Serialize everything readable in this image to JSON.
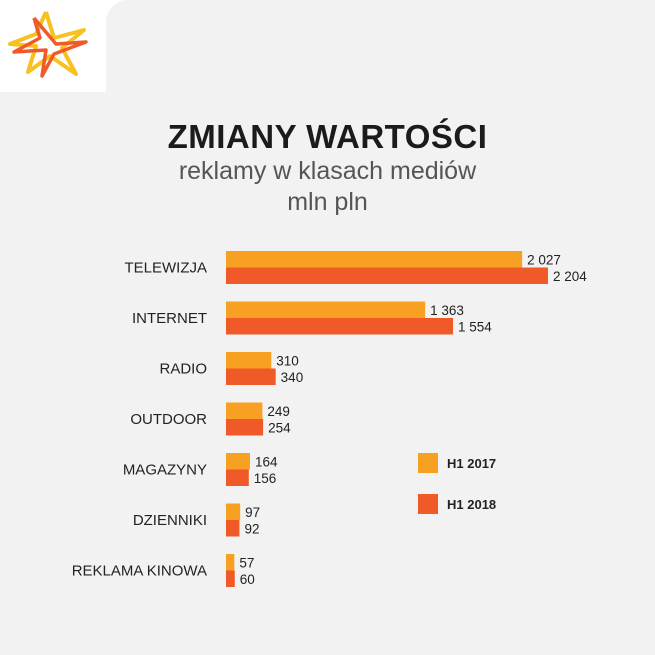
{
  "header": {
    "title": "ZMIANY WARTOŚCI",
    "subtitle_line1": "reklamy w klasach mediów",
    "subtitle_line2": "mln pln"
  },
  "colors": {
    "h1_2017": "#f7a021",
    "h1_2018": "#f05a28",
    "panel": "#f2f2f2"
  },
  "chart_data": {
    "type": "bar",
    "orientation": "horizontal",
    "title": "ZMIANY WARTOŚCI",
    "subtitle": "reklamy w klasach mediów mln pln",
    "categories": [
      "TELEWIZJA",
      "INTERNET",
      "RADIO",
      "OUTDOOR",
      "MAGAZYNY",
      "DZIENNIKI",
      "REKLAMA KINOWA"
    ],
    "series": [
      {
        "name": "H1 2017",
        "values": [
          2027,
          1363,
          310,
          249,
          164,
          97,
          57
        ],
        "labels": [
          "2 027",
          "1 363",
          "310",
          "249",
          "164",
          "97",
          "57"
        ]
      },
      {
        "name": "H1 2018",
        "values": [
          2204,
          1554,
          340,
          254,
          156,
          92,
          60
        ],
        "labels": [
          "2 204",
          "1 554",
          "340",
          "254",
          "156",
          "92",
          "60"
        ]
      }
    ],
    "xlim": [
      0,
      2204
    ],
    "legend": "right-middle",
    "grid": false
  }
}
